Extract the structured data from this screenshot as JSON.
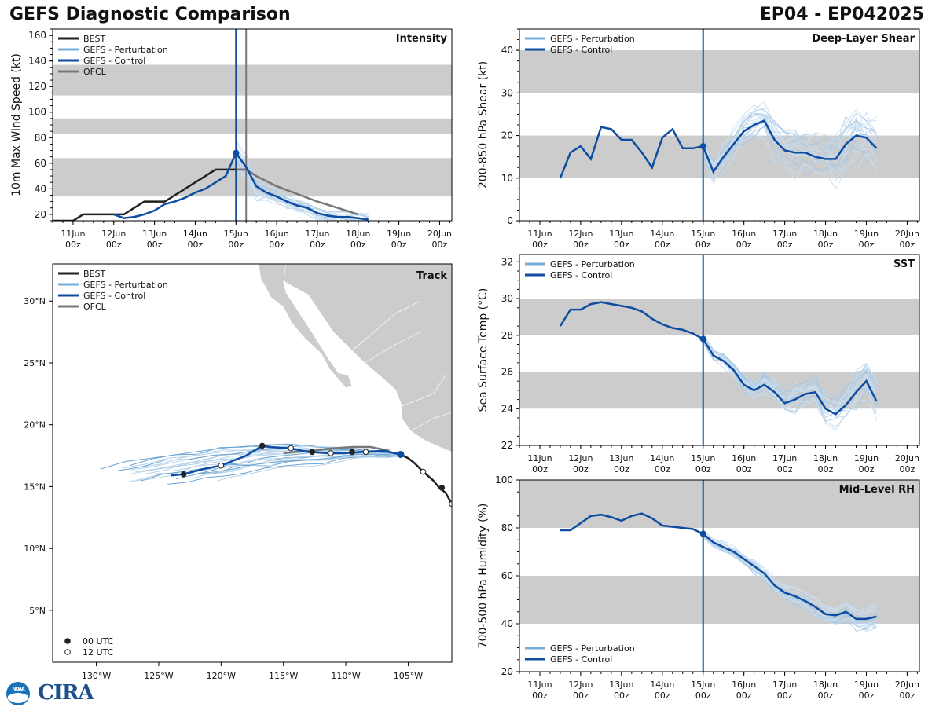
{
  "header": {
    "left_title": "GEFS Diagnostic Comparison",
    "right_title": "EP04 - EP042025"
  },
  "logo": {
    "noaa_text": "NOAA",
    "cira_text": "CIRA"
  },
  "colors": {
    "best": "#222222",
    "pert": "#74add8",
    "control": "#0c4da2",
    "ofcl": "#777777",
    "band": "#cccccc"
  },
  "chart_data": [
    {
      "id": "intensity",
      "type": "line",
      "title": "Intensity",
      "ylabel": "10m Max Wind Speed (kt)",
      "ylim": [
        15,
        165
      ],
      "yticks": [
        20,
        40,
        60,
        80,
        100,
        120,
        140,
        160
      ],
      "xlim": [
        -4.5,
        5.3
      ],
      "xticks": [
        -4,
        -3,
        -2,
        -1,
        0,
        1,
        2,
        3,
        4,
        5
      ],
      "xticklabels": [
        "11Jun\n00z",
        "12Jun\n00z",
        "13Jun\n00z",
        "14Jun\n00z",
        "15Jun\n00z",
        "16Jun\n00z",
        "17Jun\n00z",
        "18Jun\n00z",
        "19Jun\n00z",
        "20Jun\n00z"
      ],
      "bands": [
        [
          34,
          64
        ],
        [
          83,
          95
        ],
        [
          113,
          137
        ]
      ],
      "vlines": [
        {
          "x": 0,
          "color": "control"
        },
        {
          "x": 0.25,
          "color": "ofcl"
        }
      ],
      "legend": [
        {
          "label": "BEST",
          "color": "best"
        },
        {
          "label": "GEFS - Perturbation",
          "color": "pert"
        },
        {
          "label": "GEFS - Control",
          "color": "control"
        },
        {
          "label": "OFCL",
          "color": "ofcl"
        }
      ],
      "legend_pos": "top-left",
      "best": {
        "x": [
          -4.5,
          -4,
          -3.75,
          -3.5,
          -3.25,
          -3,
          -2.75,
          -2.5,
          -2.25,
          -2,
          -1.75,
          -1.5,
          -1.25,
          -1,
          -0.75,
          -0.5,
          -0.25,
          0,
          0.25
        ],
        "y": [
          15,
          15,
          20,
          20,
          20,
          20,
          20,
          25,
          30,
          30,
          30,
          35,
          40,
          45,
          50,
          55,
          55,
          55,
          55
        ]
      },
      "control": {
        "x": [
          -3,
          -2.75,
          -2.5,
          -2.25,
          -2,
          -1.75,
          -1.5,
          -1.25,
          -1,
          -0.75,
          -0.5,
          -0.25,
          0,
          0.25,
          0.5,
          0.75,
          1,
          1.25,
          1.5,
          1.75,
          2,
          2.25,
          2.5,
          2.75,
          3,
          3.25
        ],
        "y": [
          20,
          17,
          18,
          20,
          23,
          28,
          30,
          33,
          37,
          40,
          45,
          50,
          68,
          57,
          42,
          37,
          34,
          30,
          27,
          25,
          21,
          19,
          18,
          18,
          17,
          16
        ]
      },
      "ofcl": {
        "x": [
          0,
          0.25,
          0.5,
          1,
          1.5,
          2,
          2.5,
          3
        ],
        "y": [
          55,
          55,
          50,
          42,
          36,
          30,
          25,
          20
        ]
      },
      "control_marker": {
        "x": 0,
        "y": 68
      }
    },
    {
      "id": "shear",
      "type": "line",
      "title": "Deep-Layer Shear",
      "ylabel": "200-850 hPa Shear (kt)",
      "ylim": [
        0,
        45
      ],
      "yticks": [
        0,
        10,
        20,
        30,
        40
      ],
      "xlim": [
        -4.5,
        5.3
      ],
      "xticks": [
        -4,
        -3,
        -2,
        -1,
        0,
        1,
        2,
        3,
        4,
        5
      ],
      "xticklabels": [
        "11Jun\n00z",
        "12Jun\n00z",
        "13Jun\n00z",
        "14Jun\n00z",
        "15Jun\n00z",
        "16Jun\n00z",
        "17Jun\n00z",
        "18Jun\n00z",
        "19Jun\n00z",
        "20Jun\n00z"
      ],
      "bands": [
        [
          10,
          20
        ],
        [
          30,
          40
        ]
      ],
      "vlines": [
        {
          "x": 0,
          "color": "control"
        }
      ],
      "legend": [
        {
          "label": "GEFS - Perturbation",
          "color": "pert"
        },
        {
          "label": "GEFS - Control",
          "color": "control"
        }
      ],
      "legend_pos": "top-left",
      "control": {
        "x": [
          -3.5,
          -3.25,
          -3,
          -2.75,
          -2.5,
          -2.25,
          -2,
          -1.75,
          -1.5,
          -1.25,
          -1,
          -0.75,
          -0.5,
          -0.25,
          0,
          0.25,
          0.5,
          0.75,
          1,
          1.25,
          1.5,
          1.75,
          2,
          2.25,
          2.5,
          2.75,
          3,
          3.25,
          3.5,
          3.75,
          4,
          4.25
        ],
        "y": [
          10,
          16,
          17.5,
          14.5,
          22,
          21.5,
          19,
          19,
          16,
          12.5,
          19.5,
          21.5,
          17,
          17,
          17.5,
          11.5,
          15,
          18,
          21,
          22.5,
          23.5,
          19,
          16.5,
          16,
          16,
          15,
          14.5,
          14.5,
          18,
          20,
          19.5,
          17
        ]
      },
      "control_marker": {
        "x": 0,
        "y": 17.5
      }
    },
    {
      "id": "track",
      "type": "map",
      "title": "Track",
      "lonlim": [
        -133.5,
        -101.5
      ],
      "latlim": [
        0.8,
        33
      ],
      "xticks": [
        -130,
        -125,
        -120,
        -115,
        -110,
        -105
      ],
      "xticklabels": [
        "130°W",
        "125°W",
        "120°W",
        "115°W",
        "110°W",
        "105°W"
      ],
      "yticks": [
        5,
        10,
        15,
        20,
        25,
        30
      ],
      "yticklabels": [
        "5°N",
        "10°N",
        "15°N",
        "20°N",
        "25°N",
        "30°N"
      ],
      "legend": [
        {
          "label": "BEST",
          "color": "best"
        },
        {
          "label": "GEFS - Perturbation",
          "color": "pert"
        },
        {
          "label": "GEFS - Control",
          "color": "control"
        },
        {
          "label": "OFCL",
          "color": "ofcl"
        }
      ],
      "legend_pos": "top-left",
      "marker_legend": [
        {
          "label": "00 UTC",
          "fill": "#222222"
        },
        {
          "label": "12 UTC",
          "fill": "#ffffff"
        }
      ],
      "marker_legend_pos": "bottom-left",
      "best": {
        "lon": [
          -101.5,
          -102,
          -102.5,
          -103,
          -103.8,
          -104.5,
          -105,
          -105.6
        ],
        "lat": [
          13.6,
          14.5,
          14.9,
          15.5,
          16.2,
          16.9,
          17.3,
          17.6
        ]
      },
      "best_markers": [
        {
          "lon": -101.5,
          "lat": 13.6,
          "utc": "12"
        },
        {
          "lon": -102.3,
          "lat": 14.9,
          "utc": "00"
        },
        {
          "lon": -103.8,
          "lat": 16.2,
          "utc": "12"
        }
      ],
      "control": {
        "lon": [
          -105.6,
          -107,
          -108.5,
          -110,
          -111.5,
          -113,
          -114.5,
          -116,
          -116.7,
          -118,
          -119,
          -120,
          -121.5,
          -123,
          -124
        ],
        "lat": [
          17.6,
          17.9,
          17.8,
          17.7,
          17.7,
          17.8,
          18.1,
          18.2,
          18.3,
          17.5,
          17.1,
          16.7,
          16.4,
          16.0,
          15.9
        ]
      },
      "control_markers": [
        {
          "lon": -105.6,
          "lat": 17.6,
          "utc": "00"
        },
        {
          "lon": -108.4,
          "lat": 17.8,
          "utc": "12"
        },
        {
          "lon": -109.5,
          "lat": 17.8,
          "utc": "00"
        },
        {
          "lon": -111.2,
          "lat": 17.7,
          "utc": "12"
        },
        {
          "lon": -112.7,
          "lat": 17.8,
          "utc": "00"
        },
        {
          "lon": -114.4,
          "lat": 18.1,
          "utc": "12"
        },
        {
          "lon": -116.7,
          "lat": 18.3,
          "utc": "00"
        },
        {
          "lon": -120,
          "lat": 16.7,
          "utc": "12"
        },
        {
          "lon": -123,
          "lat": 16.0,
          "utc": "00"
        }
      ],
      "ofcl": {
        "lon": [
          -106.5,
          -108,
          -109.5,
          -111,
          -112.5,
          -114,
          -115
        ],
        "lat": [
          17.9,
          18.2,
          18.2,
          18.1,
          17.9,
          17.8,
          17.7
        ]
      }
    },
    {
      "id": "sst",
      "type": "line",
      "title": "SST",
      "ylabel": "Sea Surface Temp (°C)",
      "ylim": [
        22,
        32.4
      ],
      "yticks": [
        22,
        24,
        26,
        28,
        30,
        32
      ],
      "xlim": [
        -4.5,
        5.3
      ],
      "xticks": [
        -4,
        -3,
        -2,
        -1,
        0,
        1,
        2,
        3,
        4,
        5
      ],
      "xticklabels": [
        "11Jun\n00z",
        "12Jun\n00z",
        "13Jun\n00z",
        "14Jun\n00z",
        "15Jun\n00z",
        "16Jun\n00z",
        "17Jun\n00z",
        "18Jun\n00z",
        "19Jun\n00z",
        "20Jun\n00z"
      ],
      "bands": [
        [
          24,
          26
        ],
        [
          28,
          30
        ]
      ],
      "vlines": [
        {
          "x": 0,
          "color": "control"
        }
      ],
      "legend": [
        {
          "label": "GEFS - Perturbation",
          "color": "pert"
        },
        {
          "label": "GEFS - Control",
          "color": "control"
        }
      ],
      "legend_pos": "top-left",
      "control": {
        "x": [
          -3.5,
          -3.25,
          -3,
          -2.75,
          -2.5,
          -2.25,
          -2,
          -1.75,
          -1.5,
          -1.25,
          -1,
          -0.75,
          -0.5,
          -0.25,
          0,
          0.25,
          0.5,
          0.75,
          1,
          1.25,
          1.5,
          1.75,
          2,
          2.25,
          2.5,
          2.75,
          3,
          3.25,
          3.5,
          3.75,
          4,
          4.25
        ],
        "y": [
          28.5,
          29.4,
          29.4,
          29.7,
          29.8,
          29.7,
          29.6,
          29.5,
          29.3,
          28.9,
          28.6,
          28.4,
          28.3,
          28.1,
          27.8,
          26.9,
          26.6,
          26.1,
          25.3,
          25.0,
          25.3,
          24.9,
          24.3,
          24.5,
          24.8,
          24.9,
          24.0,
          23.7,
          24.2,
          24.9,
          25.5,
          24.4
        ]
      },
      "control_marker": {
        "x": 0,
        "y": 27.8
      }
    },
    {
      "id": "rh",
      "type": "line",
      "title": "Mid-Level RH",
      "ylabel": "700-500 hPa Humidity (%)",
      "ylim": [
        20,
        100
      ],
      "yticks": [
        20,
        40,
        60,
        80,
        100
      ],
      "xlim": [
        -4.5,
        5.3
      ],
      "xticks": [
        -4,
        -3,
        -2,
        -1,
        0,
        1,
        2,
        3,
        4,
        5
      ],
      "xticklabels": [
        "11Jun\n00z",
        "12Jun\n00z",
        "13Jun\n00z",
        "14Jun\n00z",
        "15Jun\n00z",
        "16Jun\n00z",
        "17Jun\n00z",
        "18Jun\n00z",
        "19Jun\n00z",
        "20Jun\n00z"
      ],
      "bands": [
        [
          40,
          60
        ],
        [
          80,
          100
        ]
      ],
      "vlines": [
        {
          "x": 0,
          "color": "control"
        }
      ],
      "legend": [
        {
          "label": "GEFS - Perturbation",
          "color": "pert"
        },
        {
          "label": "GEFS - Control",
          "color": "control"
        }
      ],
      "legend_pos": "bottom-left",
      "control": {
        "x": [
          -3.5,
          -3.25,
          -3,
          -2.75,
          -2.5,
          -2.25,
          -2,
          -1.75,
          -1.5,
          -1.25,
          -1,
          -0.75,
          -0.5,
          -0.25,
          0,
          0.25,
          0.5,
          0.75,
          1,
          1.25,
          1.5,
          1.75,
          2,
          2.25,
          2.5,
          2.75,
          3,
          3.25,
          3.5,
          3.75,
          4,
          4.25
        ],
        "y": [
          79,
          79,
          82,
          85,
          85.5,
          84.5,
          83,
          85,
          86,
          84,
          81,
          80.5,
          80,
          79.5,
          77.5,
          74,
          72,
          70,
          67,
          64,
          61,
          56,
          53,
          51.5,
          49.5,
          47,
          44,
          43.5,
          45,
          42,
          42,
          43
        ]
      },
      "control_marker": {
        "x": 0,
        "y": 77.5
      }
    }
  ]
}
